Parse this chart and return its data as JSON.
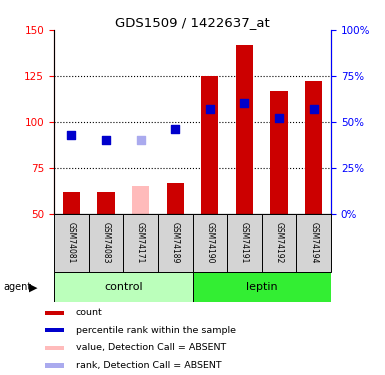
{
  "title": "GDS1509 / 1422637_at",
  "samples": [
    "GSM74081",
    "GSM74083",
    "GSM74171",
    "GSM74189",
    "GSM74190",
    "GSM74191",
    "GSM74192",
    "GSM74194"
  ],
  "bar_values": [
    62,
    62,
    65,
    67,
    125,
    142,
    117,
    122
  ],
  "bar_absent": [
    false,
    false,
    true,
    false,
    false,
    false,
    false,
    false
  ],
  "rank_values": [
    93,
    90,
    90,
    96,
    107,
    110,
    102,
    107
  ],
  "rank_absent": [
    false,
    false,
    true,
    false,
    false,
    false,
    false,
    false
  ],
  "ylim_left": [
    50,
    150
  ],
  "ylim_right": [
    0,
    100
  ],
  "yticks_left": [
    50,
    75,
    100,
    125,
    150
  ],
  "yticks_right": [
    0,
    25,
    50,
    75,
    100
  ],
  "ytick_labels_right": [
    "0%",
    "25%",
    "50%",
    "75%",
    "100%"
  ],
  "color_bar_present": "#cc0000",
  "color_bar_absent": "#ffbbbb",
  "color_rank_present": "#0000cc",
  "color_rank_absent": "#aaaaee",
  "color_control": "#bbffbb",
  "color_leptin": "#33ee33",
  "legend_items": [
    {
      "label": "count",
      "color": "#cc0000"
    },
    {
      "label": "percentile rank within the sample",
      "color": "#0000cc"
    },
    {
      "label": "value, Detection Call = ABSENT",
      "color": "#ffbbbb"
    },
    {
      "label": "rank, Detection Call = ABSENT",
      "color": "#aaaaee"
    }
  ]
}
